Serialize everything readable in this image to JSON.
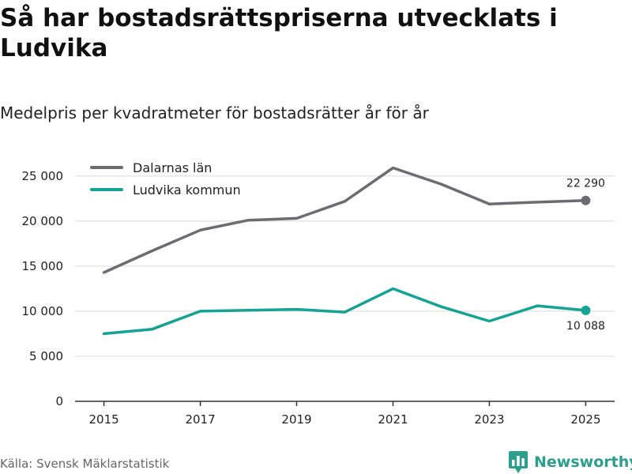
{
  "header": {
    "title": "Så har bostadsrättspriserna utvecklats i Ludvika",
    "subtitle": "Medelpris per kvadratmeter för bostadsrätter år för år"
  },
  "footer": {
    "source": "Källa: Svensk Mäklarstatistik",
    "brand": "Newsworthy"
  },
  "colors": {
    "dalarna": "#6d6c70",
    "ludvika": "#14a394",
    "grid": "#d9d9d9",
    "axis": "#333333",
    "brand": "#2b9e8c"
  },
  "chart_data": {
    "type": "line",
    "title": "Så har bostadsrättspriserna utvecklats i Ludvika",
    "subtitle": "Medelpris per kvadratmeter för bostadsrätter år för år",
    "xlabel": "",
    "ylabel": "",
    "x": [
      2015,
      2016,
      2017,
      2018,
      2019,
      2020,
      2021,
      2022,
      2023,
      2024,
      2025
    ],
    "xticks": [
      2015,
      2017,
      2019,
      2021,
      2023,
      2025
    ],
    "xtick_labels": [
      "2015",
      "2017",
      "2019",
      "2021",
      "2023",
      "2025"
    ],
    "xlim": [
      2014.4,
      2025.6
    ],
    "ylim": [
      0,
      27000
    ],
    "yticks": [
      0,
      5000,
      10000,
      15000,
      20000,
      25000
    ],
    "ytick_labels": [
      "0",
      "5 000",
      "10 000",
      "15 000",
      "20 000",
      "25 000"
    ],
    "grid": true,
    "legend_position": "top-left",
    "series": [
      {
        "name": "Dalarnas län",
        "color_key": "dalarna",
        "values": [
          14300,
          16700,
          19000,
          20100,
          20300,
          22200,
          25900,
          24100,
          21900,
          22100,
          22290
        ],
        "end_label": "22 290"
      },
      {
        "name": "Ludvika kommun",
        "color_key": "ludvika",
        "values": [
          7500,
          8000,
          10000,
          10100,
          10200,
          9900,
          12500,
          10500,
          8900,
          10600,
          10088
        ],
        "end_label": "10 088"
      }
    ]
  }
}
